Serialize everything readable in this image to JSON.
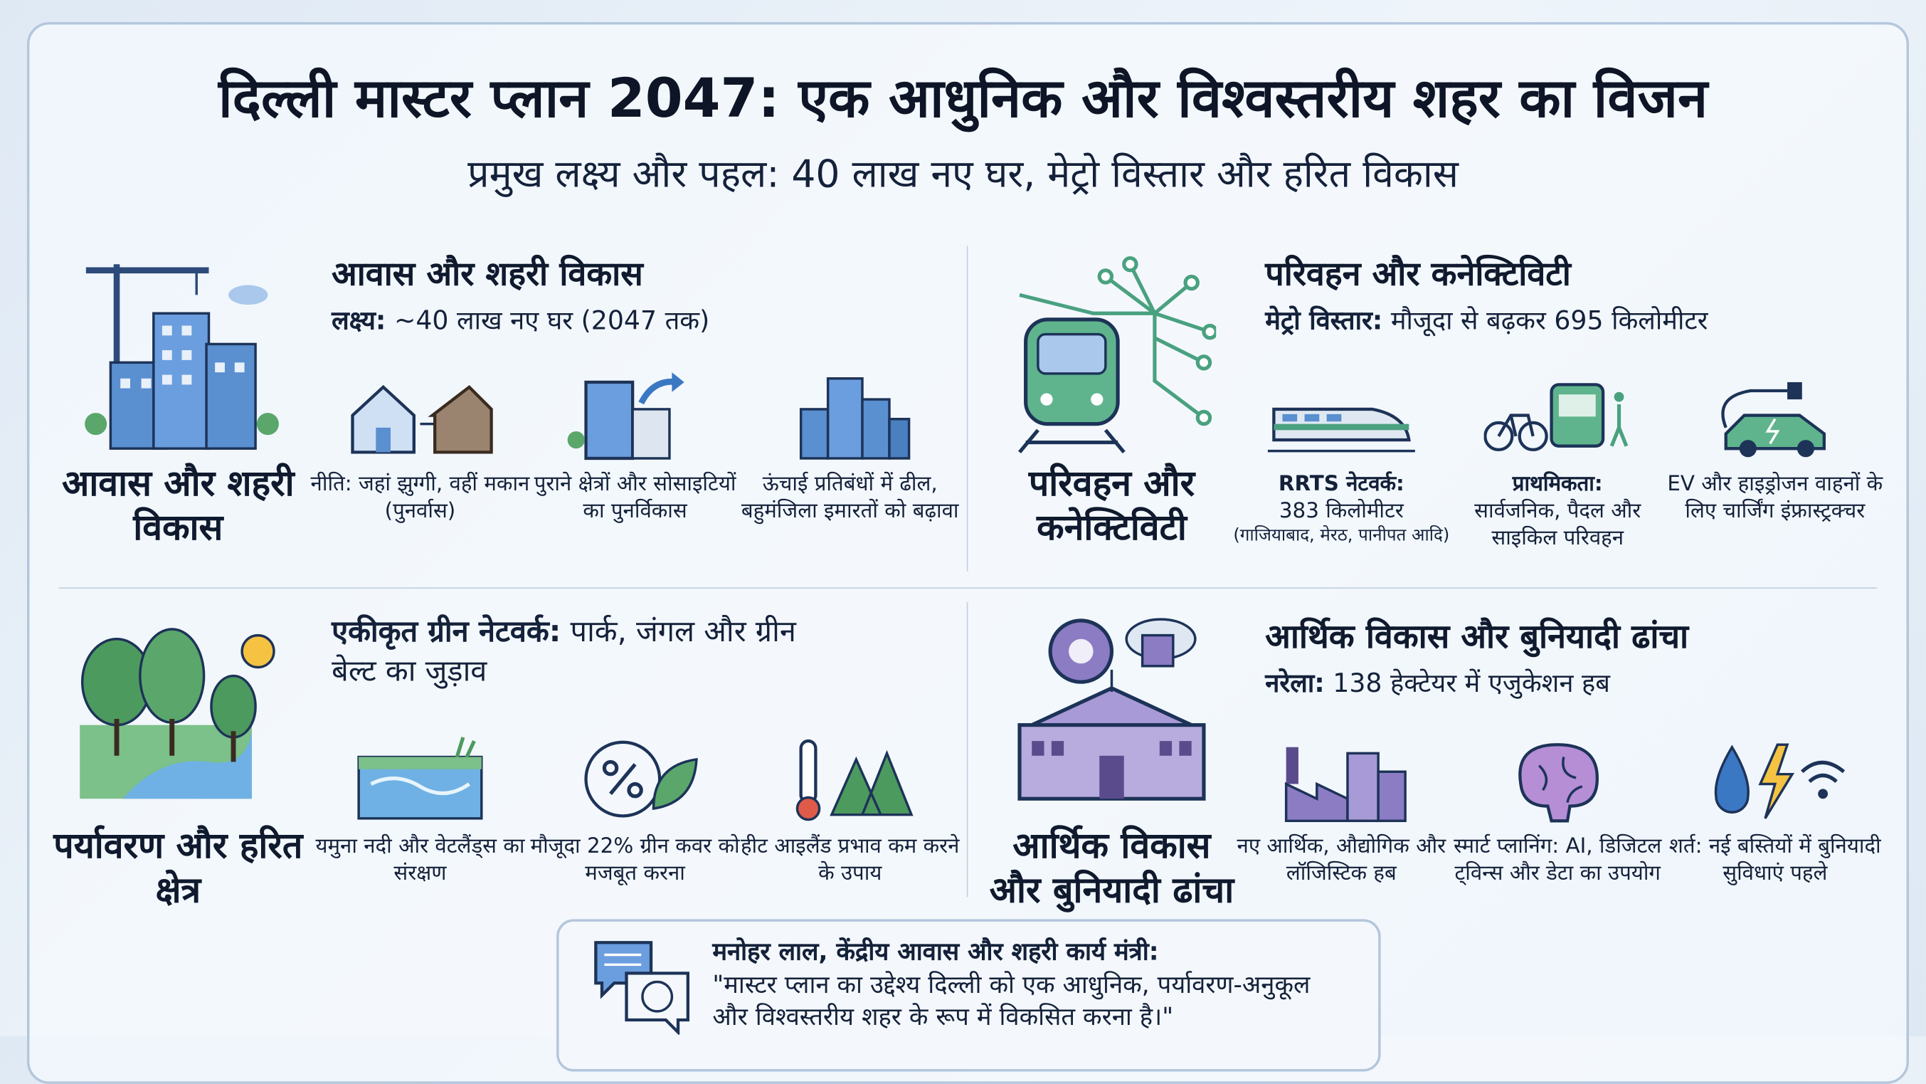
{
  "header": {
    "title": "दिल्ली मास्टर प्लान 2047: एक आधुनिक और विश्वस्तरीय शहर का विजन",
    "subtitle": "प्रमुख लक्ष्य और पहल: 40 लाख नए घर, मेट्रो विस्तार और हरित विकास"
  },
  "sections": [
    {
      "label": "आवास और शहरी विकास",
      "heading": "आवास और शहरी विकास",
      "lead_label": "लक्ष्य:",
      "lead_text": "~40 लाख नए घर (2047 तक)",
      "items": [
        {
          "text": "नीति: जहां झुग्गी, वहीं मकान (पुनर्वास)"
        },
        {
          "text": "पुराने क्षेत्रों और सोसाइटियों का पुनर्विकास"
        },
        {
          "text": "ऊंचाई प्रतिबंधों में ढील, बहुमंजिला इमारतों को बढ़ावा"
        }
      ]
    },
    {
      "label": "परिवहन और कनेक्टिविटी",
      "heading": "परिवहन और कनेक्टिविटी",
      "lead_label": "मेट्रो विस्तार:",
      "lead_text": "मौजूदा से बढ़कर 695 किलोमीटर",
      "items": [
        {
          "label": "RRTS नेटवर्क:",
          "text": "383 किलोमीटर",
          "note": "(गाजियाबाद, मेरठ, पानीपत आदि)"
        },
        {
          "label": "प्राथमिकता:",
          "text": "सार्वजनिक, पैदल और साइकिल परिवहन"
        },
        {
          "text": "EV और हाइड्रोजन वाहनों के लिए चार्जिंग इंफ्रास्ट्रक्चर"
        }
      ]
    },
    {
      "label": "पर्यावरण और हरित क्षेत्र",
      "lead_label": "एकीकृत ग्रीन नेटवर्क:",
      "lead_text": "पार्क, जंगल और ग्रीन बेल्ट का जुड़ाव",
      "items": [
        {
          "text": "यमुना नदी और वेटलैंड्स का संरक्षण"
        },
        {
          "text": "मौजूदा 22% ग्रीन कवर को मजबूत करना"
        },
        {
          "text": "हीट आइलैंड प्रभाव कम करने के उपाय"
        }
      ]
    },
    {
      "label": "आर्थिक विकास और बुनियादी ढांचा",
      "heading": "आर्थिक विकास और बुनियादी ढांचा",
      "lead_label": "नरेला:",
      "lead_text": "138 हेक्टेयर में एजुकेशन हब",
      "items": [
        {
          "text": "नए आर्थिक, औद्योगिक और लॉजिस्टिक हब"
        },
        {
          "text": "स्मार्ट प्लानिंग: AI, डिजिटल ट्विन्स और डेटा का उपयोग"
        },
        {
          "text": "शर्त: नई बस्तियों में बुनियादी सुविधाएं पहले"
        }
      ]
    }
  ],
  "quote": {
    "speaker": "मनोहर लाल, केंद्रीय आवास और शहरी कार्य मंत्री:",
    "text": "\"मास्टर प्लान का उद्देश्य दिल्ली को एक आधुनिक, पर्यावरण-अनुकूल और विश्वस्तरीय शहर के रूप में विकसित करना है।\""
  }
}
